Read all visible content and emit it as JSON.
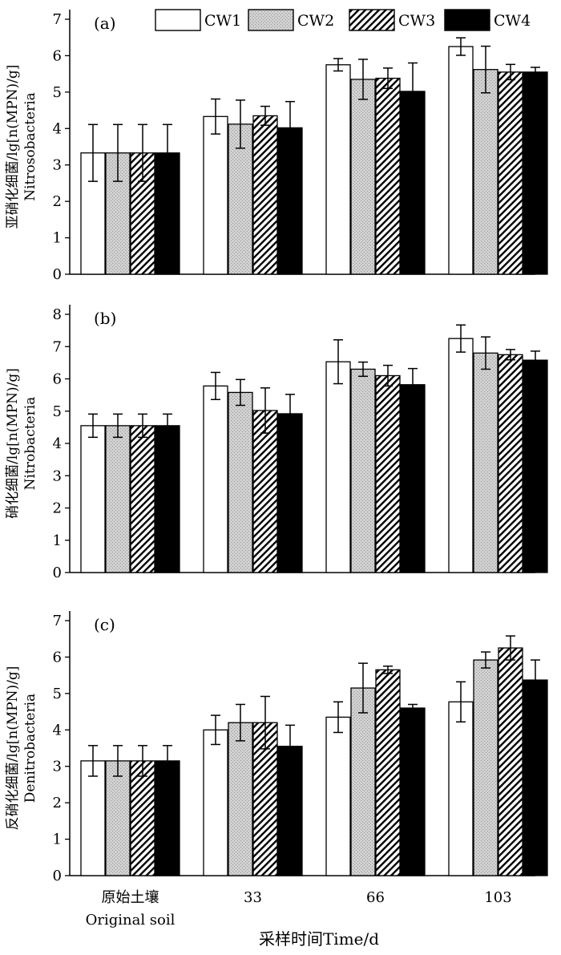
{
  "legend": [
    "CW1",
    "CW2",
    "CW3",
    "CW4"
  ],
  "xlabel": "采样时间Time/d",
  "chart_data": [
    {
      "type": "bar",
      "panel_label": "(a)",
      "ylabel_cn": "亚硝化细菌/lg[n(MPN)/g]",
      "ylabel_en": "Nitrosobacteria",
      "ylim": [
        0,
        7
      ],
      "yticks": [
        "0",
        "1",
        "2",
        "3",
        "4",
        "5",
        "6",
        "7"
      ],
      "categories": [
        [
          "原始土壤",
          "Original soil"
        ],
        [
          "33"
        ],
        [
          "66"
        ],
        [
          "103"
        ]
      ],
      "series": [
        {
          "name": "CW1",
          "values": [
            3.33,
            4.33,
            5.75,
            6.25
          ],
          "errors": [
            0.78,
            0.48,
            0.17,
            0.24
          ]
        },
        {
          "name": "CW2",
          "values": [
            3.33,
            4.12,
            5.35,
            5.62
          ],
          "errors": [
            0.78,
            0.66,
            0.55,
            0.64
          ]
        },
        {
          "name": "CW3",
          "values": [
            3.33,
            4.35,
            5.38,
            5.55
          ],
          "errors": [
            0.78,
            0.26,
            0.28,
            0.21
          ]
        },
        {
          "name": "CW4",
          "values": [
            3.33,
            4.02,
            5.02,
            5.55
          ],
          "errors": [
            0.78,
            0.72,
            0.78,
            0.13
          ]
        }
      ]
    },
    {
      "type": "bar",
      "panel_label": "(b)",
      "ylabel_cn": "硝化细菌/lg[n(MPN)/g]",
      "ylabel_en": "Nitrobacteria",
      "ylim": [
        0,
        8
      ],
      "yticks": [
        "0",
        "1",
        "2",
        "3",
        "4",
        "5",
        "6",
        "7",
        "8"
      ],
      "categories": [
        [
          "原始土壤",
          "Original soil"
        ],
        [
          "33"
        ],
        [
          "66"
        ],
        [
          "103"
        ]
      ],
      "series": [
        {
          "name": "CW1",
          "values": [
            4.55,
            5.78,
            6.53,
            7.25
          ],
          "errors": [
            0.36,
            0.42,
            0.68,
            0.42
          ]
        },
        {
          "name": "CW2",
          "values": [
            4.55,
            5.58,
            6.3,
            6.8
          ],
          "errors": [
            0.36,
            0.4,
            0.22,
            0.5
          ]
        },
        {
          "name": "CW3",
          "values": [
            4.55,
            5.02,
            6.1,
            6.75
          ],
          "errors": [
            0.36,
            0.7,
            0.32,
            0.16
          ]
        },
        {
          "name": "CW4",
          "values": [
            4.55,
            4.92,
            5.82,
            6.58
          ],
          "errors": [
            0.36,
            0.6,
            0.5,
            0.28
          ]
        }
      ]
    },
    {
      "type": "bar",
      "panel_label": "(c)",
      "ylabel_cn": "反硝化细菌/lg[n(MPN)/g]",
      "ylabel_en": "Denitrobacteria",
      "ylim": [
        0,
        7
      ],
      "yticks": [
        "0",
        "1",
        "2",
        "3",
        "4",
        "5",
        "6",
        "7"
      ],
      "categories": [
        [
          "原始土壤",
          "Original soil"
        ],
        [
          "33"
        ],
        [
          "66"
        ],
        [
          "103"
        ]
      ],
      "series": [
        {
          "name": "CW1",
          "values": [
            3.15,
            4.0,
            4.35,
            4.77
          ],
          "errors": [
            0.42,
            0.4,
            0.42,
            0.55
          ]
        },
        {
          "name": "CW2",
          "values": [
            3.15,
            4.2,
            5.15,
            5.92
          ],
          "errors": [
            0.42,
            0.5,
            0.68,
            0.22
          ]
        },
        {
          "name": "CW3",
          "values": [
            3.15,
            4.2,
            5.65,
            6.25
          ],
          "errors": [
            0.42,
            0.72,
            0.1,
            0.33
          ]
        },
        {
          "name": "CW4",
          "values": [
            3.15,
            3.55,
            4.6,
            5.37
          ],
          "errors": [
            0.42,
            0.58,
            0.1,
            0.55
          ]
        }
      ]
    }
  ]
}
